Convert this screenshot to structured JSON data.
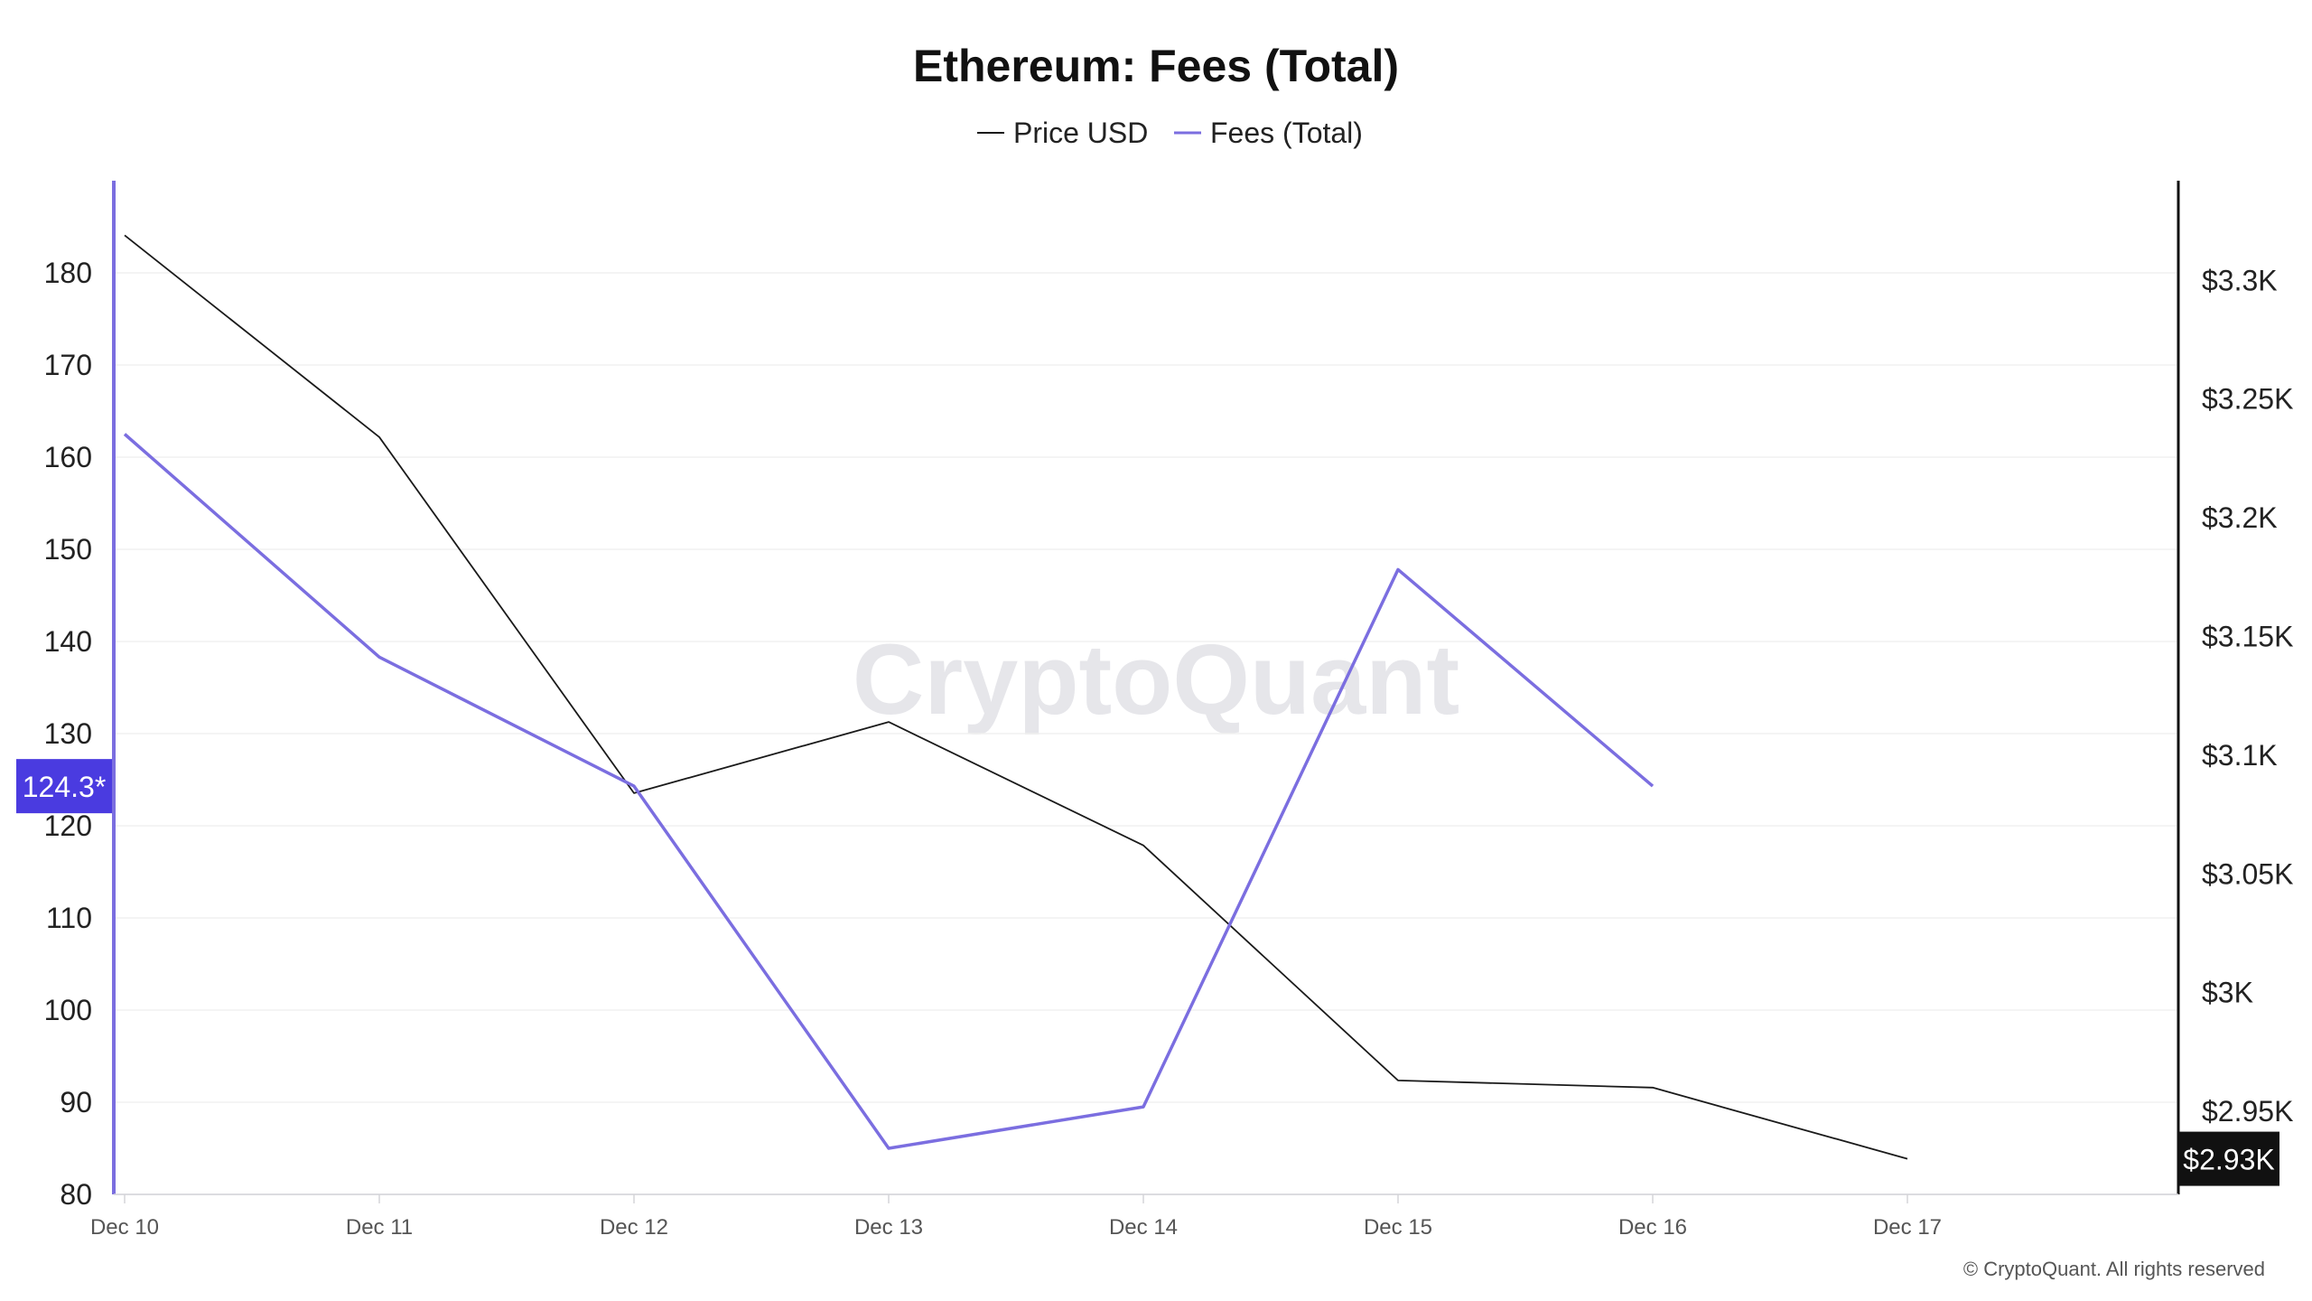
{
  "chart_data": {
    "type": "line",
    "title": "Ethereum: Fees (Total)",
    "categories": [
      "Dec 10",
      "Dec 11",
      "Dec 12",
      "Dec 13",
      "Dec 14",
      "Dec 15",
      "Dec 16",
      "Dec 17"
    ],
    "series": [
      {
        "name": "Price USD",
        "axis": "right",
        "color": "#1a1a1a",
        "values": [
          3319,
          3234,
          3084,
          3114,
          3062,
          2963,
          2960,
          2930
        ]
      },
      {
        "name": "Fees (Total)",
        "axis": "left",
        "color": "#7b6ee0",
        "values": [
          162.5,
          138.3,
          124.3,
          85,
          89.5,
          147.8,
          124.3,
          null
        ]
      }
    ],
    "left_axis": {
      "ticks": [
        "80",
        "90",
        "100",
        "110",
        "120",
        "130",
        "140",
        "150",
        "160",
        "170",
        "180"
      ],
      "ylim": [
        80,
        190
      ]
    },
    "right_axis": {
      "ticks": [
        "$2.95K",
        "$3K",
        "$3.05K",
        "$3.1K",
        "$3.15K",
        "$3.2K",
        "$3.25K",
        "$3.3K"
      ],
      "ylim": [
        2915,
        3342
      ]
    },
    "left_badge": "124.3*",
    "right_badge": "$2.93K",
    "legend_position": "top-center",
    "grid": true
  },
  "watermark": "CryptoQuant",
  "copyright": "© CryptoQuant. All rights reserved",
  "colors": {
    "left_axis": "#7b6ee0",
    "left_badge_bg": "#4a3be0",
    "right_axis": "#111111",
    "grid": "#f0f0f0"
  }
}
